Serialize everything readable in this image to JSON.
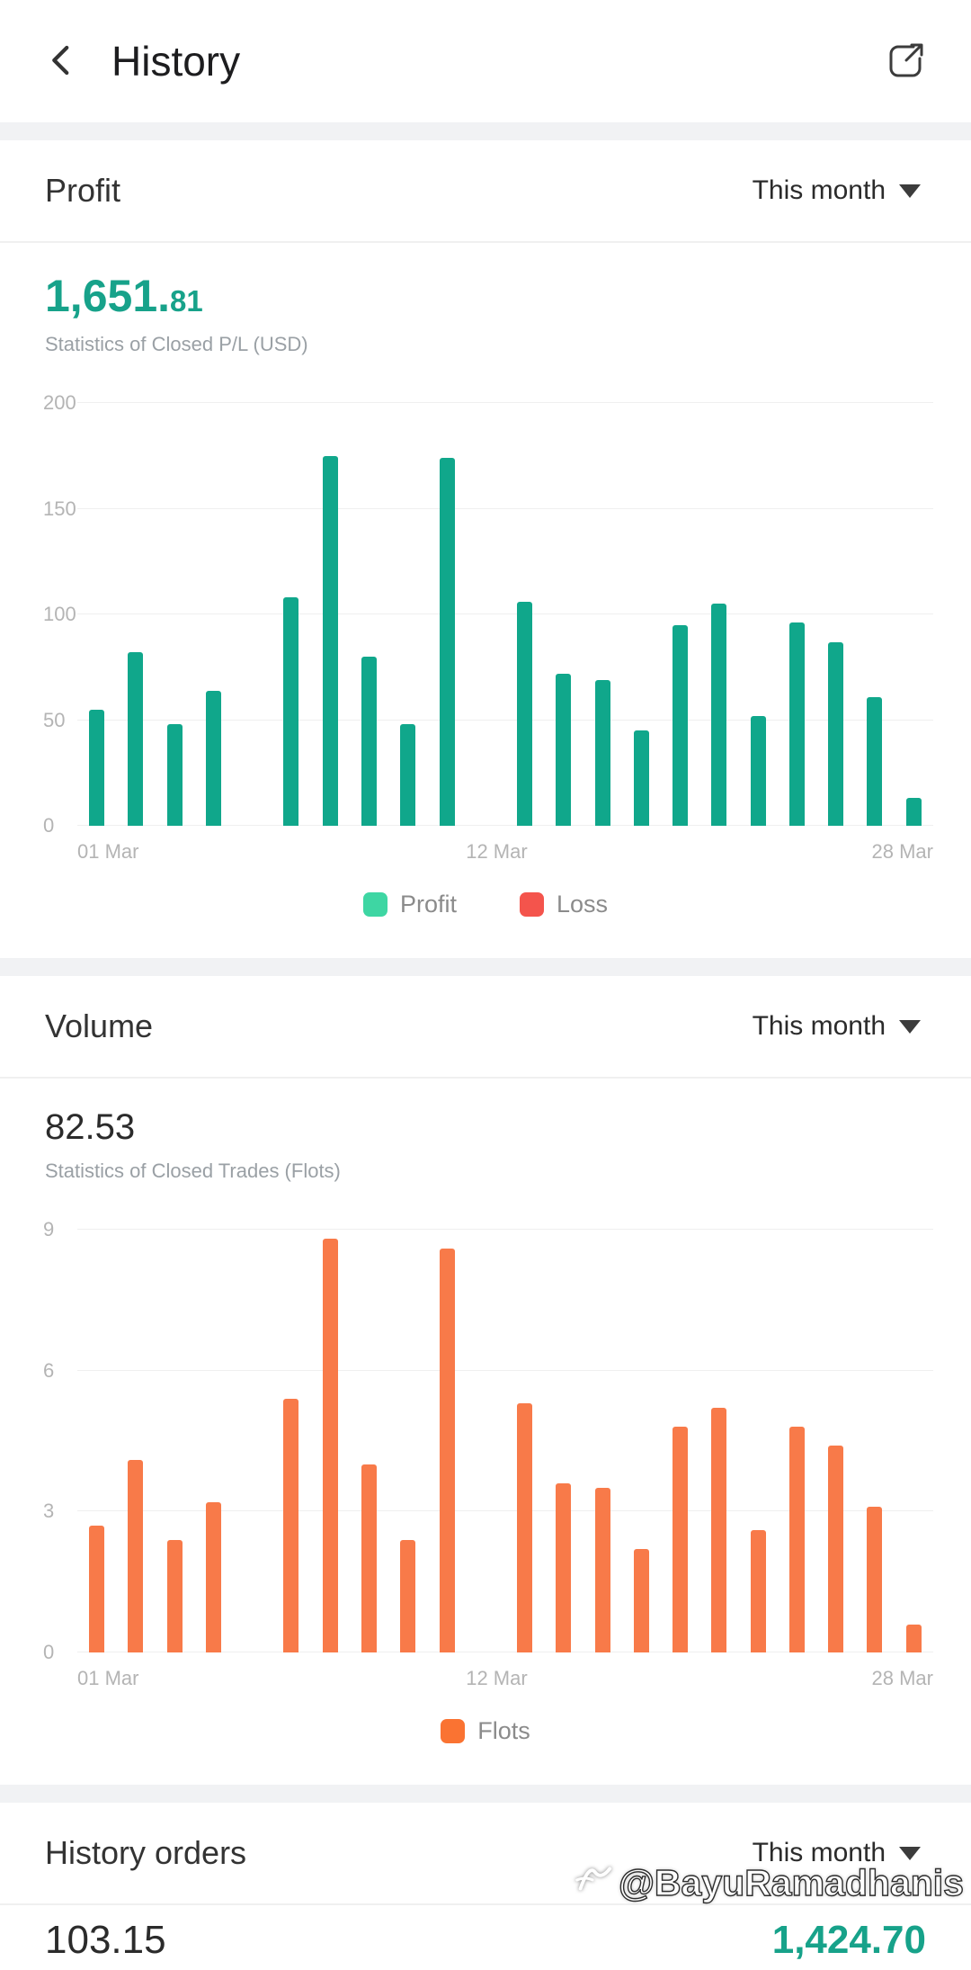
{
  "header": {
    "title": "History"
  },
  "icons": {
    "back": "chevron-left",
    "share": "share-export",
    "period_caret": "caret-down"
  },
  "colors": {
    "accent": "#17a28a",
    "profit_bar": "#10a78b",
    "loss": "#f4544c",
    "volume_bar": "#f87a49"
  },
  "profit_section": {
    "title": "Profit",
    "period": "This month",
    "total_main": "1,651.",
    "total_decimal": "81",
    "subtitle": "Statistics of Closed P/L (USD)",
    "legend": [
      {
        "label": "Profit",
        "color": "#3ed6a3"
      },
      {
        "label": "Loss",
        "color": "#f4544c"
      }
    ]
  },
  "volume_section": {
    "title": "Volume",
    "period": "This month",
    "total": "82.53",
    "subtitle": "Statistics of Closed Trades (Flots)",
    "legend": [
      {
        "label": "Flots",
        "color": "#fa7332"
      }
    ]
  },
  "history_orders_section": {
    "title": "History orders",
    "period": "This month",
    "left_value": "103.15",
    "right_value": "1,424.70"
  },
  "watermark": {
    "text": "@BayuRamadhanis"
  },
  "chart_data": [
    {
      "type": "bar",
      "title": "Statistics of Closed P/L (USD)",
      "bar_color": "#10a78b",
      "ylim": [
        0,
        200
      ],
      "yticks": [
        0,
        50,
        100,
        150,
        200
      ],
      "grid": true,
      "legend_position": "bottom",
      "xticks": [
        {
          "label": "01 Mar",
          "pos": 0
        },
        {
          "label": "12 Mar",
          "pos": 0.49
        },
        {
          "label": "28 Mar",
          "pos": 1
        }
      ],
      "values": [
        55,
        82,
        48,
        64,
        null,
        108,
        175,
        80,
        48,
        174,
        null,
        106,
        72,
        69,
        45,
        95,
        105,
        52,
        96,
        87,
        61,
        13
      ]
    },
    {
      "type": "bar",
      "title": "Statistics of Closed Trades (Flots)",
      "bar_color": "#f87a49",
      "ylim": [
        0,
        9
      ],
      "yticks": [
        0,
        3,
        6,
        9
      ],
      "grid": true,
      "legend_position": "bottom",
      "xticks": [
        {
          "label": "01 Mar",
          "pos": 0
        },
        {
          "label": "12 Mar",
          "pos": 0.49
        },
        {
          "label": "28 Mar",
          "pos": 1
        }
      ],
      "values": [
        2.7,
        4.1,
        2.4,
        3.2,
        null,
        5.4,
        8.8,
        4.0,
        2.4,
        8.6,
        null,
        5.3,
        3.6,
        3.5,
        2.2,
        4.8,
        5.2,
        2.6,
        4.8,
        4.4,
        3.1,
        0.6
      ]
    }
  ]
}
